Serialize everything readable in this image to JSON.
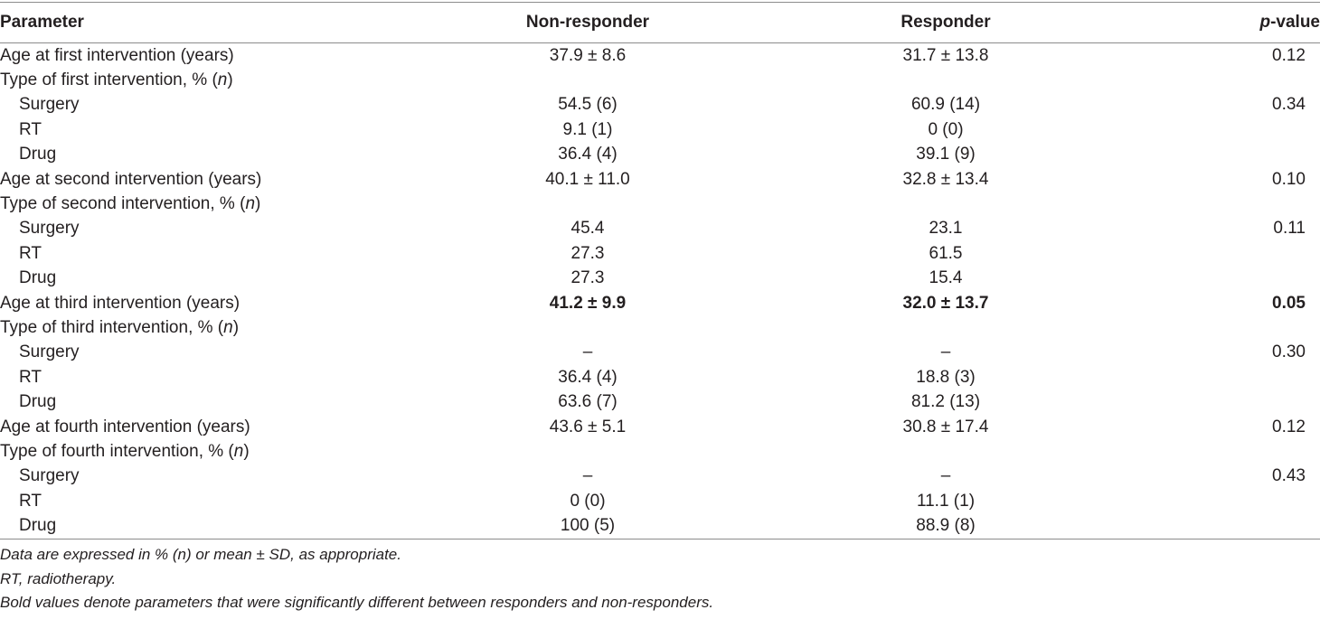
{
  "header": {
    "parameter": "Parameter",
    "non_responder": "Non-responder",
    "responder": "Responder",
    "p_value_italic": "p",
    "p_value_rest": "-value"
  },
  "rows": [
    {
      "label": "Age at first intervention (years)",
      "indent": false,
      "non": "37.9 ± 8.6",
      "resp": "31.7 ± 13.8",
      "p": "0.12"
    },
    {
      "label": "Type of first intervention, % (",
      "label_n": "n",
      "label_close": ")",
      "indent": false,
      "non": "",
      "resp": "",
      "p": ""
    },
    {
      "label": "Surgery",
      "indent": true,
      "non": "54.5 (6)",
      "resp": "60.9 (14)",
      "p": "0.34"
    },
    {
      "label": "RT",
      "indent": true,
      "non": "9.1 (1)",
      "resp": "0 (0)",
      "p": ""
    },
    {
      "label": "Drug",
      "indent": true,
      "non": "36.4 (4)",
      "resp": "39.1 (9)",
      "p": ""
    },
    {
      "label": "Age at second intervention (years)",
      "indent": false,
      "non": "40.1 ± 11.0",
      "resp": "32.8 ± 13.4",
      "p": "0.10"
    },
    {
      "label": "Type of second intervention, % (",
      "label_n": "n",
      "label_close": ")",
      "indent": false,
      "non": "",
      "resp": "",
      "p": ""
    },
    {
      "label": "Surgery",
      "indent": true,
      "non": "45.4",
      "resp": "23.1",
      "p": "0.11"
    },
    {
      "label": "RT",
      "indent": true,
      "non": "27.3",
      "resp": "61.5",
      "p": ""
    },
    {
      "label": "Drug",
      "indent": true,
      "non": "27.3",
      "resp": "15.4",
      "p": ""
    },
    {
      "label": "Age at third intervention (years)",
      "indent": false,
      "non": "41.2 ± 9.9",
      "resp": "32.0 ± 13.7",
      "p": "0.05",
      "bold": true
    },
    {
      "label": "Type of third intervention, % (",
      "label_n": "n",
      "label_close": ")",
      "indent": false,
      "non": "",
      "resp": "",
      "p": ""
    },
    {
      "label": "Surgery",
      "indent": true,
      "non": "–",
      "resp": "–",
      "p": "0.30"
    },
    {
      "label": "RT",
      "indent": true,
      "non": "36.4 (4)",
      "resp": "18.8 (3)",
      "p": ""
    },
    {
      "label": "Drug",
      "indent": true,
      "non": "63.6 (7)",
      "resp": "81.2 (13)",
      "p": ""
    },
    {
      "label": "Age at fourth intervention (years)",
      "indent": false,
      "non": "43.6 ± 5.1",
      "resp": "30.8 ± 17.4",
      "p": "0.12"
    },
    {
      "label": "Type of fourth intervention, % (",
      "label_n": "n",
      "label_close": ")",
      "indent": false,
      "non": "",
      "resp": "",
      "p": ""
    },
    {
      "label": "Surgery",
      "indent": true,
      "non": "–",
      "resp": "–",
      "p": "0.43"
    },
    {
      "label": "RT",
      "indent": true,
      "non": "0 (0)",
      "resp": "11.1 (1)",
      "p": ""
    },
    {
      "label": "Drug",
      "indent": true,
      "non": "100 (5)",
      "resp": "88.9 (8)",
      "p": ""
    }
  ],
  "notes": [
    "Data are expressed in % (n) or mean ± SD, as appropriate.",
    "RT, radiotherapy.",
    "Bold values denote parameters that were significantly different between responders and non-responders."
  ]
}
